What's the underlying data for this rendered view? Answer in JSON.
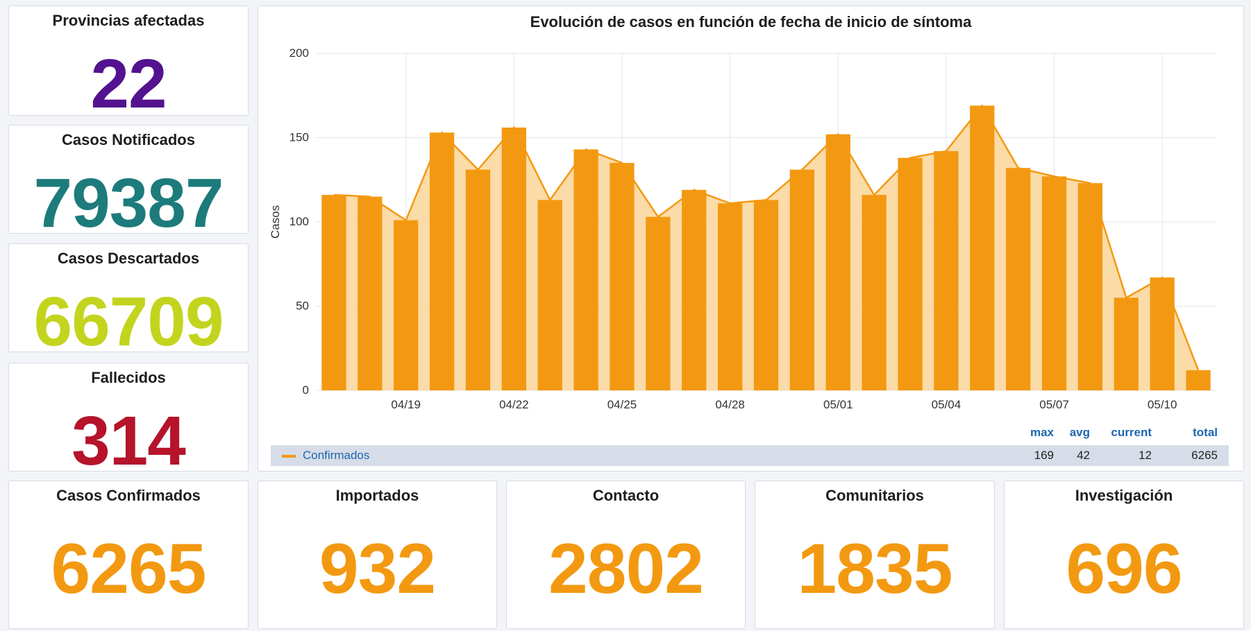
{
  "colors": {
    "purple": "#53128f",
    "teal": "#1d7b7b",
    "lime": "#c3d41e",
    "red": "#b5142b",
    "orange": "#f39911",
    "area_fill": "#fbd79e"
  },
  "stats": {
    "provincias": {
      "title": "Provincias afectadas",
      "value": "22"
    },
    "notificados": {
      "title": "Casos Notificados",
      "value": "79387"
    },
    "descartados": {
      "title": "Casos Descartados",
      "value": "66709"
    },
    "fallecidos": {
      "title": "Fallecidos",
      "value": "314"
    },
    "confirmados": {
      "title": "Casos Confirmados",
      "value": "6265"
    },
    "importados": {
      "title": "Importados",
      "value": "932"
    },
    "contacto": {
      "title": "Contacto",
      "value": "2802"
    },
    "comunitarios": {
      "title": "Comunitarios",
      "value": "1835"
    },
    "investigacion": {
      "title": "Investigación",
      "value": "696"
    }
  },
  "chart_data": {
    "type": "bar",
    "title": "Evolución de casos en función de fecha de inicio de síntoma",
    "xlabel": "",
    "ylabel": "Casos",
    "ylim": [
      0,
      200
    ],
    "yticks": [
      0,
      50,
      100,
      150,
      200
    ],
    "grid": true,
    "x": [
      "04/17",
      "04/18",
      "04/19",
      "04/20",
      "04/21",
      "04/22",
      "04/23",
      "04/24",
      "04/25",
      "04/26",
      "04/27",
      "04/28",
      "04/29",
      "04/30",
      "05/01",
      "05/02",
      "05/03",
      "05/04",
      "05/05",
      "05/06",
      "05/07",
      "05/08",
      "05/09",
      "05/10",
      "05/11"
    ],
    "xtick_labels": [
      "04/19",
      "04/22",
      "04/25",
      "04/28",
      "05/01",
      "05/04",
      "05/07",
      "05/10"
    ],
    "series": [
      {
        "name": "Confirmados",
        "values": [
          116,
          115,
          101,
          153,
          131,
          156,
          113,
          143,
          135,
          103,
          119,
          111,
          113,
          131,
          152,
          116,
          138,
          142,
          169,
          132,
          127,
          123,
          55,
          67,
          12
        ]
      }
    ],
    "legend": {
      "placement": "bottom",
      "headers": [
        "max",
        "avg",
        "current",
        "total"
      ],
      "rows": [
        {
          "name": "Confirmados",
          "values": [
            "169",
            "42",
            "12",
            "6265"
          ]
        }
      ]
    }
  }
}
